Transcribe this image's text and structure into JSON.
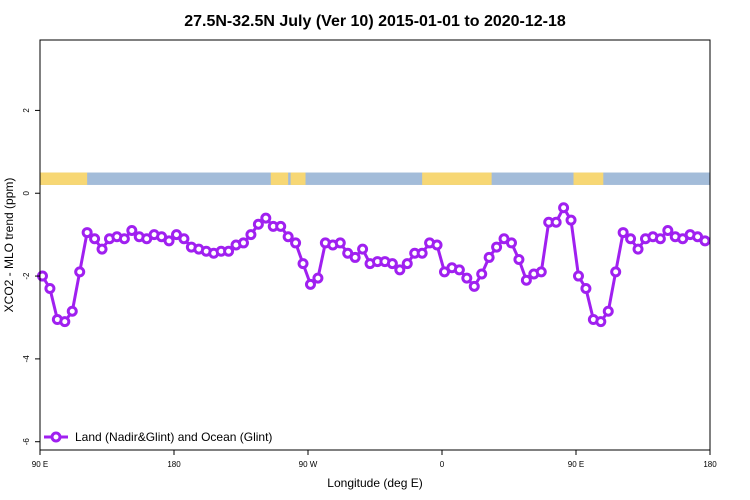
{
  "chart_data": {
    "type": "line",
    "title": "27.5N-32.5N July (Ver 10)   2015-01-01 to 2020-12-18",
    "xlabel": "Longitude (deg E)",
    "ylabel": "XCO2 - MLO trend (ppm)",
    "xlim": [
      -90,
      180
    ],
    "ylim": [
      -6.2,
      3.7
    ],
    "x_ticks": [
      {
        "value": -90,
        "label": "90 E"
      },
      {
        "value": -36,
        "label": "180"
      },
      {
        "value": 18,
        "label": "90 W"
      },
      {
        "value": 72,
        "label": "0"
      },
      {
        "value": 126,
        "label": "90 E"
      },
      {
        "value": 180,
        "label": "180"
      }
    ],
    "y_ticks": [
      {
        "value": 2,
        "label": "2"
      },
      {
        "value": 0,
        "label": "0"
      },
      {
        "value": -2,
        "label": "-2"
      },
      {
        "value": -4,
        "label": "-4"
      },
      {
        "value": -6,
        "label": "-6"
      }
    ],
    "land_ocean_band": {
      "y_range": [
        0.2,
        0.5
      ],
      "land_color": "#f7d774",
      "ocean_color": "#a3bcd9",
      "land_segments": [
        [
          -90,
          -71
        ],
        [
          3,
          10
        ],
        [
          11,
          17
        ],
        [
          64,
          92
        ],
        [
          125,
          137
        ]
      ]
    },
    "series": [
      {
        "name": "Land (Nadir&Glint) and Ocean (Glint)",
        "color": "#a020f0",
        "x": [
          -89,
          -86,
          -83,
          -80,
          -77,
          -74,
          -71,
          -68,
          -65,
          -62,
          -59,
          -56,
          -53,
          -50,
          -47,
          -44,
          -41,
          -38,
          -35,
          -32,
          -29,
          -26,
          -23,
          -20,
          -17,
          -14,
          -11,
          -8,
          -5,
          -2,
          1,
          4,
          7,
          10,
          13,
          16,
          19,
          22,
          25,
          28,
          31,
          34,
          37,
          40,
          43,
          46,
          49,
          52,
          55,
          58,
          61,
          64,
          67,
          70,
          73,
          76,
          79,
          82,
          85,
          88,
          91,
          94,
          97,
          100,
          103,
          106,
          109,
          112,
          115,
          118,
          121,
          124,
          127,
          130,
          133,
          136,
          139,
          142,
          145,
          148,
          151,
          154,
          157,
          160,
          163,
          166,
          169,
          172,
          175,
          178
        ],
        "y": [
          -2.0,
          -2.3,
          -3.05,
          -3.1,
          -2.85,
          -1.9,
          -0.95,
          -1.1,
          -1.35,
          -1.1,
          -1.05,
          -1.1,
          -0.9,
          -1.05,
          -1.1,
          -1.0,
          -1.05,
          -1.15,
          -1.0,
          -1.1,
          -1.3,
          -1.35,
          -1.4,
          -1.45,
          -1.4,
          -1.4,
          -1.25,
          -1.2,
          -1.0,
          -0.75,
          -0.6,
          -0.8,
          -0.8,
          -1.05,
          -1.2,
          -1.7,
          -2.2,
          -2.05,
          -1.2,
          -1.25,
          -1.2,
          -1.45,
          -1.55,
          -1.35,
          -1.7,
          -1.65,
          -1.65,
          -1.7,
          -1.85,
          -1.7,
          -1.45,
          -1.45,
          -1.2,
          -1.25,
          -1.9,
          -1.8,
          -1.85,
          -2.05,
          -2.25,
          -1.95,
          -1.55,
          -1.3,
          -1.1,
          -1.2,
          -1.6,
          -2.1,
          -1.95,
          -1.9,
          -0.7,
          -0.7,
          -0.35,
          -0.65,
          -2.0,
          -2.3,
          -3.05,
          -3.1,
          -2.85,
          -1.9,
          -0.95,
          -1.1,
          -1.35,
          -1.1,
          -1.05,
          -1.1,
          -0.9,
          -1.05,
          -1.1,
          -1.0,
          -1.05,
          -1.15
        ]
      }
    ],
    "legend_position": "bottom-left",
    "grid": false
  }
}
